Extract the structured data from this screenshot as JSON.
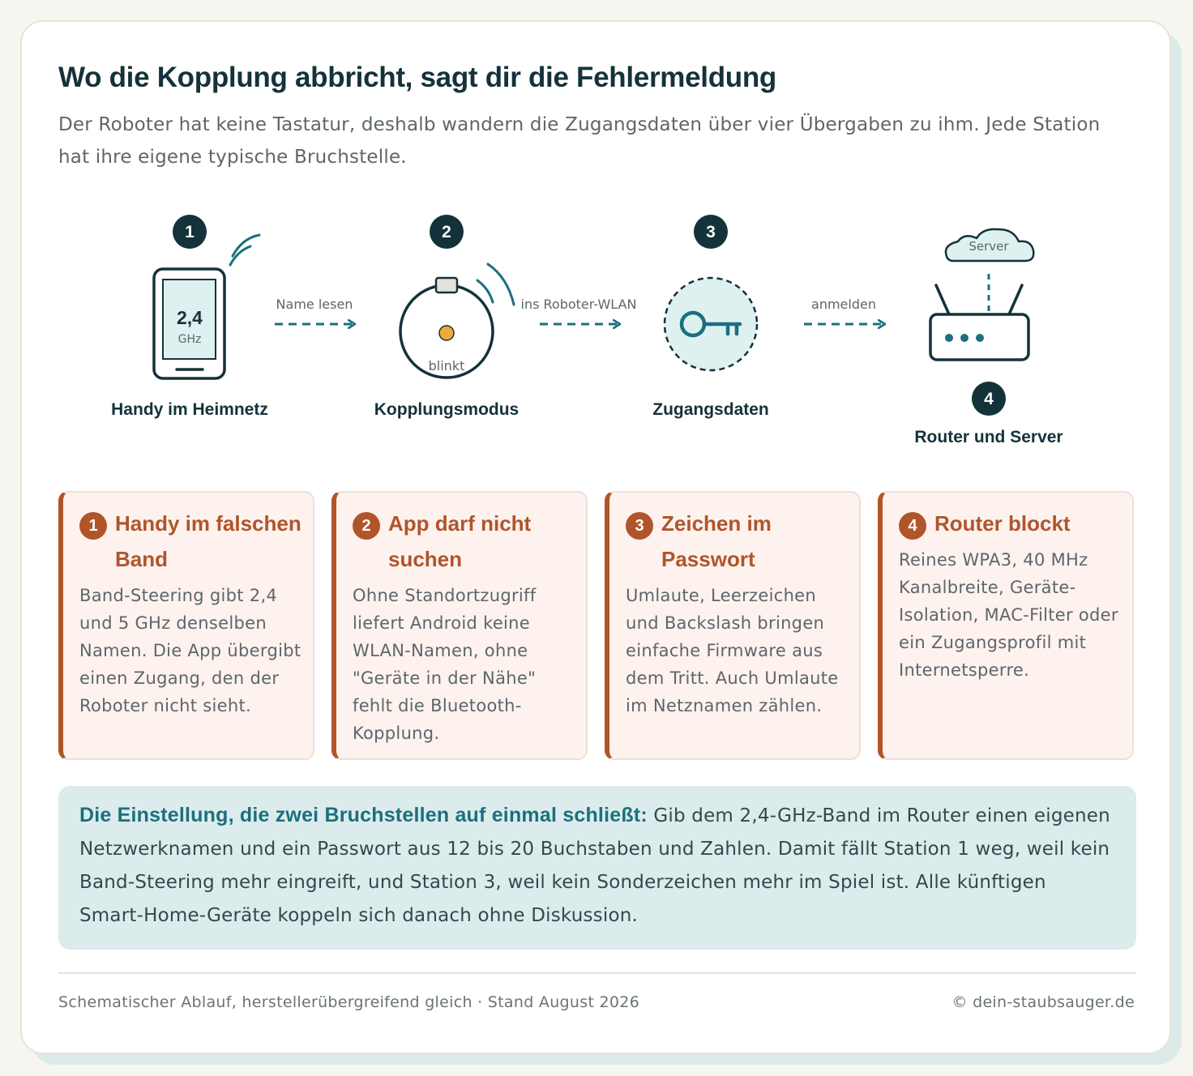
{
  "header": {
    "title": "Wo die Kopplung abbricht, sagt dir die Fehlermeldung",
    "subtitle": "Der Roboter hat keine Tastatur, deshalb wandern die Zugangsdaten über vier Übergaben zu ihm. Jede Station hat ihre eigene typische Bruchstelle."
  },
  "diagram": {
    "stations": [
      {
        "number": "1",
        "label": "Handy im Heimnetz",
        "screen_value": "2,4",
        "screen_unit": "GHz"
      },
      {
        "number": "2",
        "label": "Kopplungsmodus",
        "status": "blinkt"
      },
      {
        "number": "3",
        "label": "Zugangsdaten"
      },
      {
        "number": "4",
        "label": "Router und Server",
        "cloud": "Server"
      }
    ],
    "arrows": [
      "Name lesen",
      "ins Roboter-WLAN",
      "anmelden"
    ]
  },
  "problems": [
    {
      "number": "1",
      "title": "Handy im falschen Band",
      "text": "Band-Steering gibt 2,4 und 5 GHz denselben Namen. Die App übergibt einen Zugang, den der Roboter nicht sieht."
    },
    {
      "number": "2",
      "title": "App darf nicht suchen",
      "text": "Ohne Standortzugriff liefert Android keine WLAN-Namen, ohne \"Geräte in der Nähe\" fehlt die Bluetooth-Kopplung."
    },
    {
      "number": "3",
      "title": "Zeichen im Passwort",
      "text": "Umlaute, Leerzeichen und Backslash bringen einfache Firmware aus dem Tritt. Auch Umlaute im Netznamen zählen."
    },
    {
      "number": "4",
      "title": "Router blockt",
      "text": "Reines WPA3, 40 MHz Kanalbreite, Geräte-Isolation, MAC-Filter oder ein Zugangsprofil mit Internetsperre."
    }
  ],
  "callout": {
    "lead": "Die Einstellung, die zwei Bruchstellen auf einmal schließt:",
    "text": " Gib dem 2,4-GHz-Band im Router einen eigenen Netzwerknamen und ein Passwort aus 12 bis 20 Buchstaben und Zahlen. Damit fällt Station 1 weg, weil kein Band-Steering mehr eingreift, und Station 3, weil kein Sonderzeichen mehr im Spiel ist. Alle künftigen Smart-Home-Geräte koppeln sich danach ohne Diskussion."
  },
  "footer": {
    "source": "Schematischer Ablauf, herstellerübergreifend gleich · Stand August 2026",
    "copyright": "© dein-staubsauger.de"
  },
  "colors": {
    "dark": "#14323a",
    "teal": "#1c6f7e",
    "rust": "#b0552a",
    "accent": "#f0a93b"
  }
}
